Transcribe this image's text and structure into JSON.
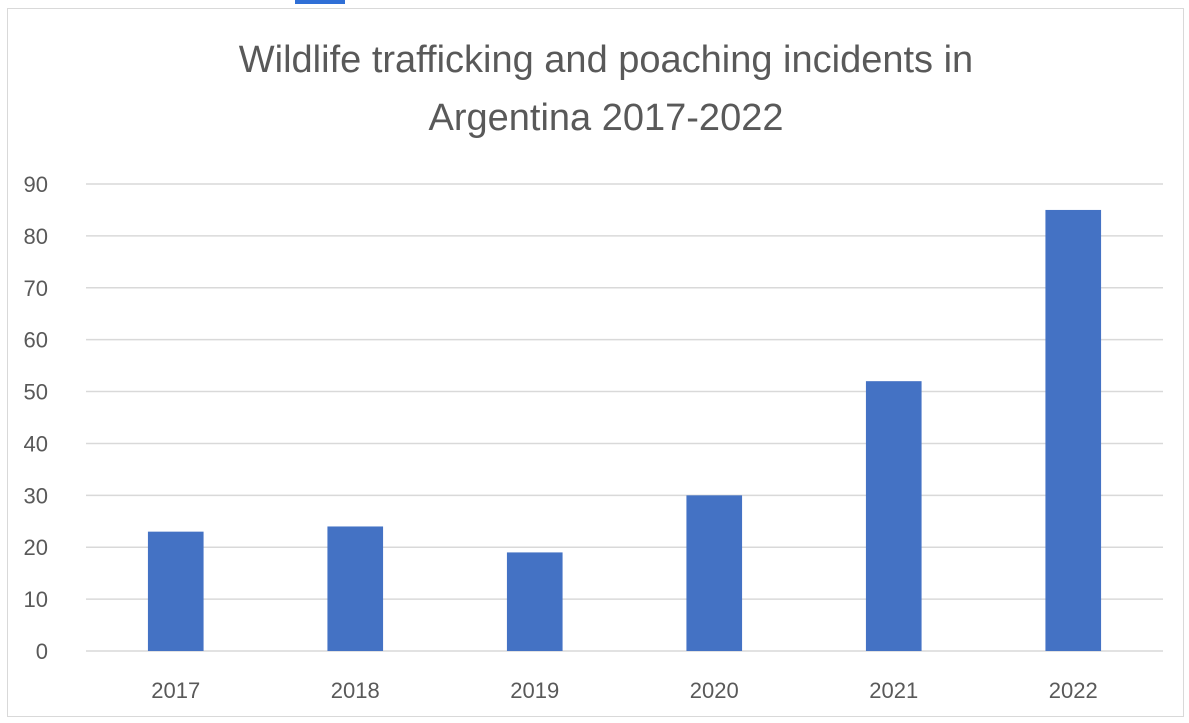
{
  "chart_data": {
    "type": "bar",
    "title_lines": [
      "Wildlife trafficking and poaching incidents in",
      "Argentina 2017-2022"
    ],
    "categories": [
      "2017",
      "2018",
      "2019",
      "2020",
      "2021",
      "2022"
    ],
    "values": [
      23,
      24,
      19,
      30,
      52,
      85
    ],
    "xlabel": "",
    "ylabel": "",
    "ylim": [
      0,
      90
    ],
    "yticks": [
      0,
      10,
      20,
      30,
      40,
      50,
      60,
      70,
      80,
      90
    ],
    "grid": true,
    "legend": "none",
    "bar_color": "#4472C4",
    "grid_color": "#d9d9d9",
    "text_color": "#595959"
  }
}
